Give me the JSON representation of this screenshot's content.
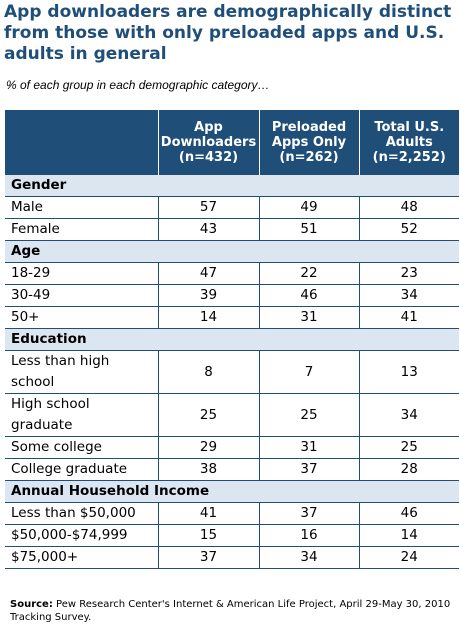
{
  "title": "App downloaders are demographically distinct from those with only preloaded apps and U.S. adults in general",
  "subtitle": "% of each group in each demographic category…",
  "columns": [
    {
      "line1": "App",
      "line2": "Downloaders",
      "line3": "(n=432)"
    },
    {
      "line1": "Preloaded",
      "line2": "Apps Only",
      "line3": "(n=262)"
    },
    {
      "line1": "Total U.S.",
      "line2": "Adults",
      "line3": "(n=2,252)"
    }
  ],
  "sections": [
    {
      "name": "Gender",
      "rows": [
        {
          "label": "Male",
          "values": [
            "57",
            "49",
            "48"
          ]
        },
        {
          "label": "Female",
          "values": [
            "43",
            "51",
            "52"
          ]
        }
      ]
    },
    {
      "name": "Age",
      "rows": [
        {
          "label": "18-29",
          "values": [
            "47",
            "22",
            "23"
          ]
        },
        {
          "label": "30-49",
          "values": [
            "39",
            "46",
            "34"
          ]
        },
        {
          "label": "50+",
          "values": [
            "14",
            "31",
            "41"
          ]
        }
      ]
    },
    {
      "name": "Education",
      "rows": [
        {
          "label": "Less than high school",
          "values": [
            "8",
            "7",
            "13"
          ],
          "tall": true
        },
        {
          "label": "High school graduate",
          "values": [
            "25",
            "25",
            "34"
          ],
          "tall": true
        },
        {
          "label": "Some college",
          "values": [
            "29",
            "31",
            "25"
          ]
        },
        {
          "label": "College graduate",
          "values": [
            "38",
            "37",
            "28"
          ]
        }
      ]
    },
    {
      "name": "Annual Household Income",
      "rows": [
        {
          "label": "Less than $50,000",
          "values": [
            "41",
            "37",
            "46"
          ]
        },
        {
          "label": "$50,000-$74,999",
          "values": [
            "15",
            "16",
            "14"
          ]
        },
        {
          "label": "$75,000+",
          "values": [
            "37",
            "34",
            "24"
          ]
        }
      ]
    }
  ],
  "source": {
    "label": "Source:",
    "text": "Pew Research Center's Internet & American Life Project, April 29-May 30, 2010 Tracking Survey."
  },
  "chart_data": {
    "type": "table",
    "title": "App downloaders are demographically distinct from those with only preloaded apps and U.S. adults in general",
    "subtitle": "% of each group in each demographic category…",
    "columns": [
      "App Downloaders (n=432)",
      "Preloaded Apps Only (n=262)",
      "Total U.S. Adults (n=2,252)"
    ],
    "rows": [
      {
        "group": "Gender",
        "category": "Male",
        "values": [
          57,
          49,
          48
        ]
      },
      {
        "group": "Gender",
        "category": "Female",
        "values": [
          43,
          51,
          52
        ]
      },
      {
        "group": "Age",
        "category": "18-29",
        "values": [
          47,
          22,
          23
        ]
      },
      {
        "group": "Age",
        "category": "30-49",
        "values": [
          39,
          46,
          34
        ]
      },
      {
        "group": "Age",
        "category": "50+",
        "values": [
          14,
          31,
          41
        ]
      },
      {
        "group": "Education",
        "category": "Less than high school",
        "values": [
          8,
          7,
          13
        ]
      },
      {
        "group": "Education",
        "category": "High school graduate",
        "values": [
          25,
          25,
          34
        ]
      },
      {
        "group": "Education",
        "category": "Some college",
        "values": [
          29,
          31,
          25
        ]
      },
      {
        "group": "Education",
        "category": "College graduate",
        "values": [
          38,
          37,
          28
        ]
      },
      {
        "group": "Annual Household Income",
        "category": "Less than $50,000",
        "values": [
          41,
          37,
          46
        ]
      },
      {
        "group": "Annual Household Income",
        "category": "$50,000-$74,999",
        "values": [
          15,
          16,
          14
        ]
      },
      {
        "group": "Annual Household Income",
        "category": "$75,000+",
        "values": [
          37,
          34,
          24
        ]
      }
    ]
  }
}
